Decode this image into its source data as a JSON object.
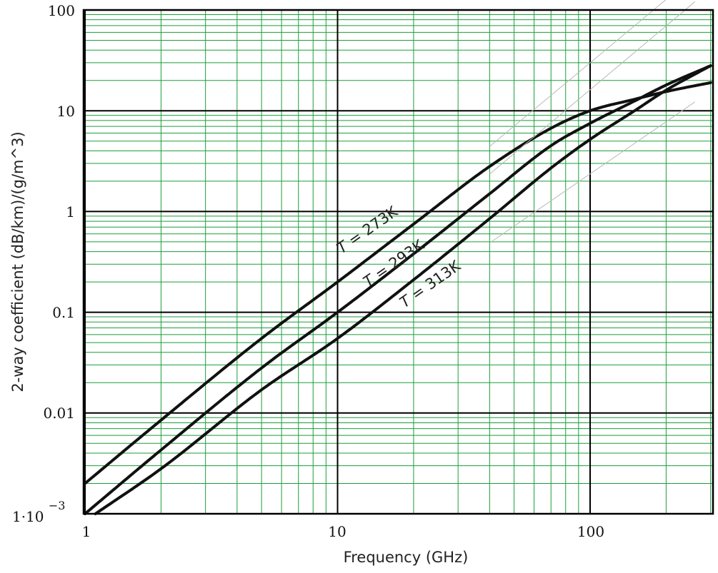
{
  "chart_data": {
    "type": "line",
    "title": "",
    "xlabel": "Frequency (GHz)",
    "ylabel": "2-way coefficient (dB/km)/(g/m^3)",
    "x_scale": "log",
    "y_scale": "log",
    "xlim": [
      1,
      300
    ],
    "ylim": [
      0.001,
      100
    ],
    "grid": true,
    "x_tick_labels": [
      {
        "value": 1,
        "label": "1"
      },
      {
        "value": 10,
        "label": "10"
      },
      {
        "value": 100,
        "label": "100"
      }
    ],
    "y_tick_labels": [
      {
        "value": 0.001,
        "label": "1·10",
        "exponent": "−3"
      },
      {
        "value": 0.01,
        "label": "0.01"
      },
      {
        "value": 0.1,
        "label": "0.1"
      },
      {
        "value": 1,
        "label": "1"
      },
      {
        "value": 10,
        "label": "10"
      },
      {
        "value": 100,
        "label": "100"
      }
    ],
    "series": [
      {
        "name": "T = 273K",
        "label_prefix": "T",
        "label_rest": " = 273K",
        "x": [
          1,
          2,
          5,
          10,
          20,
          40,
          70,
          100,
          150,
          200,
          300
        ],
        "y": [
          0.002,
          0.0085,
          0.055,
          0.2,
          0.75,
          2.8,
          6.7,
          10,
          13,
          15.5,
          19
        ]
      },
      {
        "name": "T = 293K",
        "label_prefix": "T",
        "label_rest": " = 293K",
        "x": [
          1,
          2,
          5,
          10,
          20,
          40,
          70,
          100,
          150,
          200,
          300
        ],
        "y": [
          0.001,
          0.0043,
          0.028,
          0.1,
          0.38,
          1.5,
          4.5,
          7.5,
          12.5,
          18,
          28
        ]
      },
      {
        "name": "T = 313K",
        "label_prefix": "T",
        "label_rest": " = 313K",
        "x": [
          1.1,
          2,
          5,
          10,
          20,
          40,
          70,
          100,
          150,
          200,
          300
        ],
        "y": [
          0.001,
          0.0028,
          0.017,
          0.055,
          0.21,
          0.85,
          2.7,
          5.2,
          10,
          16,
          28
        ]
      }
    ]
  }
}
